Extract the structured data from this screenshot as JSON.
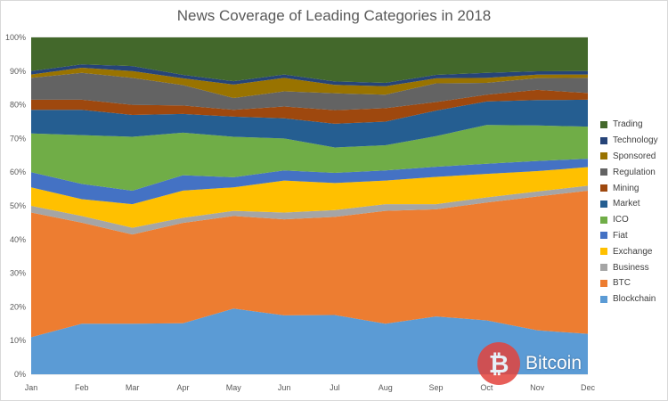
{
  "chart_data": {
    "type": "area",
    "stacking": "percent",
    "title": "News Coverage of Leading Categories in 2018",
    "categories": [
      "Jan",
      "Feb",
      "Mar",
      "Apr",
      "May",
      "Jun",
      "Jul",
      "Aug",
      "Sep",
      "Oct",
      "Nov",
      "Dec"
    ],
    "y_ticks": [
      "0%",
      "10%",
      "20%",
      "30%",
      "40%",
      "50%",
      "60%",
      "70%",
      "80%",
      "90%",
      "100%"
    ],
    "ylim": [
      0,
      100
    ],
    "legend_position": "right",
    "series": [
      {
        "name": "Blockchain",
        "color": "#5b9bd5",
        "values": [
          11,
          15,
          15,
          15,
          19.5,
          17.5,
          17.5,
          15,
          17,
          16,
          13,
          12
        ]
      },
      {
        "name": "BTC",
        "color": "#ed7d31",
        "values": [
          37,
          30,
          26.5,
          29.5,
          27.5,
          28.5,
          29,
          33.5,
          31.5,
          35,
          39.5,
          42.5
        ]
      },
      {
        "name": "Business",
        "color": "#a5a5a5",
        "values": [
          2,
          2,
          2,
          1.5,
          1.5,
          2,
          2,
          2,
          1.5,
          1.5,
          1.5,
          1.5
        ]
      },
      {
        "name": "Exchange",
        "color": "#ffc000",
        "values": [
          5.5,
          5,
          7,
          8,
          7,
          9.5,
          8,
          7,
          8,
          7,
          6,
          5.5
        ]
      },
      {
        "name": "Fiat",
        "color": "#4472c4",
        "values": [
          4.5,
          4.5,
          4,
          4.5,
          3,
          3,
          3,
          3,
          3,
          3,
          3,
          2.5
        ]
      },
      {
        "name": "ICO",
        "color": "#70ad47",
        "values": [
          11.5,
          14.5,
          16,
          12.5,
          12,
          9.5,
          7.5,
          7.5,
          9,
          11.5,
          10.5,
          9.5
        ]
      },
      {
        "name": "Market",
        "color": "#255e91",
        "values": [
          7,
          7.5,
          6.5,
          5.5,
          6,
          6,
          7,
          7,
          7.5,
          7,
          7.5,
          8
        ]
      },
      {
        "name": "Mining",
        "color": "#9e480e",
        "values": [
          3,
          3,
          3,
          2.5,
          2,
          3.5,
          4,
          4,
          2.5,
          2,
          3,
          2
        ]
      },
      {
        "name": "Regulation",
        "color": "#636363",
        "values": [
          6.5,
          8,
          8,
          6,
          3.5,
          4.5,
          5,
          4,
          5.5,
          3.5,
          3.5,
          4.5
        ]
      },
      {
        "name": "Sponsored",
        "color": "#997300",
        "values": [
          1,
          1.5,
          2,
          2,
          4,
          4,
          2.5,
          2.5,
          1.5,
          1.5,
          1,
          1
        ]
      },
      {
        "name": "Technology",
        "color": "#264478",
        "values": [
          1,
          1,
          1.5,
          1,
          1,
          1,
          1,
          1,
          1,
          1.5,
          1,
          1
        ]
      },
      {
        "name": "Trading",
        "color": "#43682b",
        "values": [
          10,
          8,
          8.5,
          11,
          13,
          11,
          13,
          13.5,
          11,
          10.5,
          10,
          10
        ]
      }
    ]
  },
  "watermark": {
    "text": "Bitcoin",
    "glyph": "₿"
  }
}
